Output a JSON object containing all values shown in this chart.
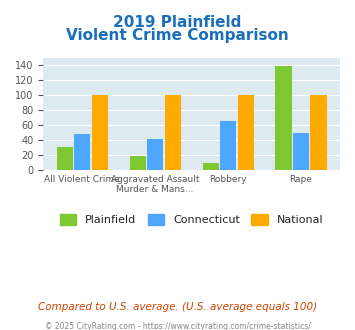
{
  "title_line1": "2019 Plainfield",
  "title_line2": "Violent Crime Comparison",
  "categories": [
    "All Violent Crime",
    "Aggravated Assault\nMurder & Mans...",
    "Robbery",
    "Rape"
  ],
  "cat_labels_line1": [
    "All Violent Crime",
    "Aggravated Assault",
    "Robbery",
    "Rape"
  ],
  "cat_labels_line2": [
    "",
    "Murder & Mans...",
    "",
    ""
  ],
  "plainfield": [
    31,
    19,
    9,
    139
  ],
  "connecticut": [
    48,
    41,
    66,
    50
  ],
  "national": [
    100,
    100,
    100,
    100
  ],
  "colors": {
    "plainfield": "#7ec832",
    "connecticut": "#4da6ff",
    "national": "#ffaa00"
  },
  "ylim": [
    0,
    150
  ],
  "yticks": [
    0,
    20,
    40,
    60,
    80,
    100,
    120,
    140
  ],
  "bg_color": "#ddeaf0",
  "title_color": "#1a6eba",
  "xlabel_color": "#888888",
  "footer_text": "Compared to U.S. average. (U.S. average equals 100)",
  "footer_color": "#cc4400",
  "credit_text": "© 2025 CityRating.com - https://www.cityrating.com/crime-statistics/",
  "credit_color": "#888888"
}
